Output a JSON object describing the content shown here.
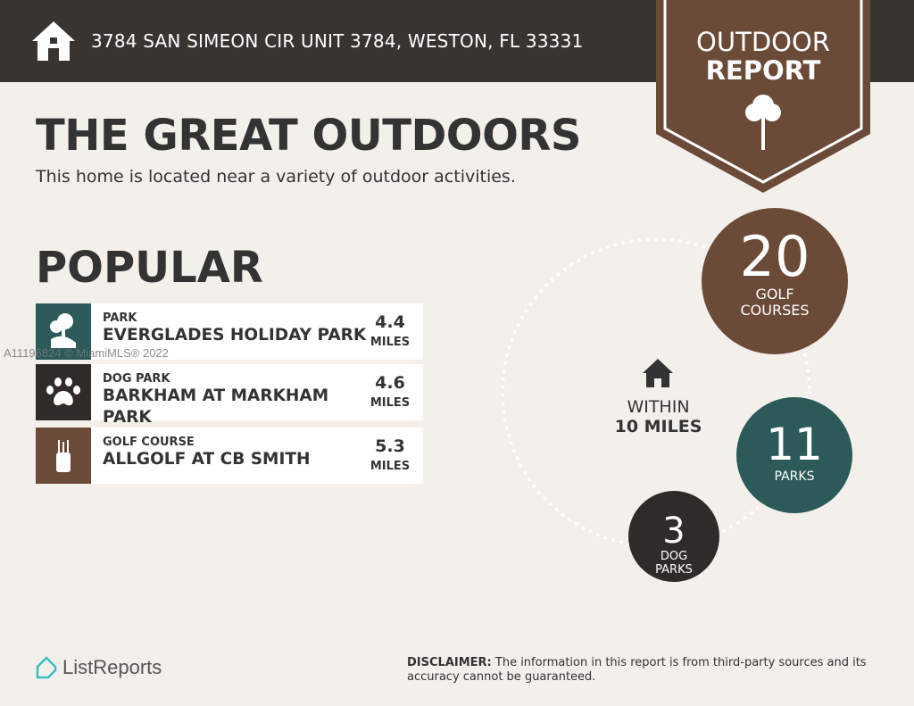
{
  "header": {
    "address": "3784 SAN SIMEON CIR UNIT 3784, WESTON, FL 33331",
    "icon": "home-icon"
  },
  "badge": {
    "line1": "OUTDOOR",
    "line2": "REPORT",
    "icon": "tree-icon",
    "color": "#6b4a37"
  },
  "main": {
    "title": "THE GREAT OUTDOORS",
    "subtitle": "This home is located near a variety of outdoor activities.",
    "popular_heading": "POPULAR"
  },
  "popular": [
    {
      "category": "PARK",
      "name": "EVERGLADES HOLIDAY PARK",
      "distance": "4.4",
      "unit": "MILES",
      "icon": "trees-icon",
      "color": "#2b5a59"
    },
    {
      "category": "DOG PARK",
      "name": "BARKHAM AT MARKHAM PARK",
      "distance": "4.6",
      "unit": "MILES",
      "icon": "paw-icon",
      "color": "#302b29"
    },
    {
      "category": "GOLF COURSE",
      "name": "ALLGOLF AT CB SMITH",
      "distance": "5.3",
      "unit": "MILES",
      "icon": "golf-bag-icon",
      "color": "#6b4a37"
    }
  ],
  "watermark": "A11196824 © MiamiMLS® 2022",
  "summary": {
    "within_line1": "WITHIN",
    "within_line2": "10 MILES",
    "golf": {
      "count": "20",
      "label1": "GOLF",
      "label2": "COURSES"
    },
    "parks": {
      "count": "11",
      "label1": "PARKS"
    },
    "dog": {
      "count": "3",
      "label1": "DOG",
      "label2": "PARKS"
    }
  },
  "footer": {
    "logo": "ListReports",
    "disclaimer_label": "DISCLAIMER:",
    "disclaimer_text": " The information in this report is from third-party sources and its accuracy cannot be guaranteed."
  }
}
